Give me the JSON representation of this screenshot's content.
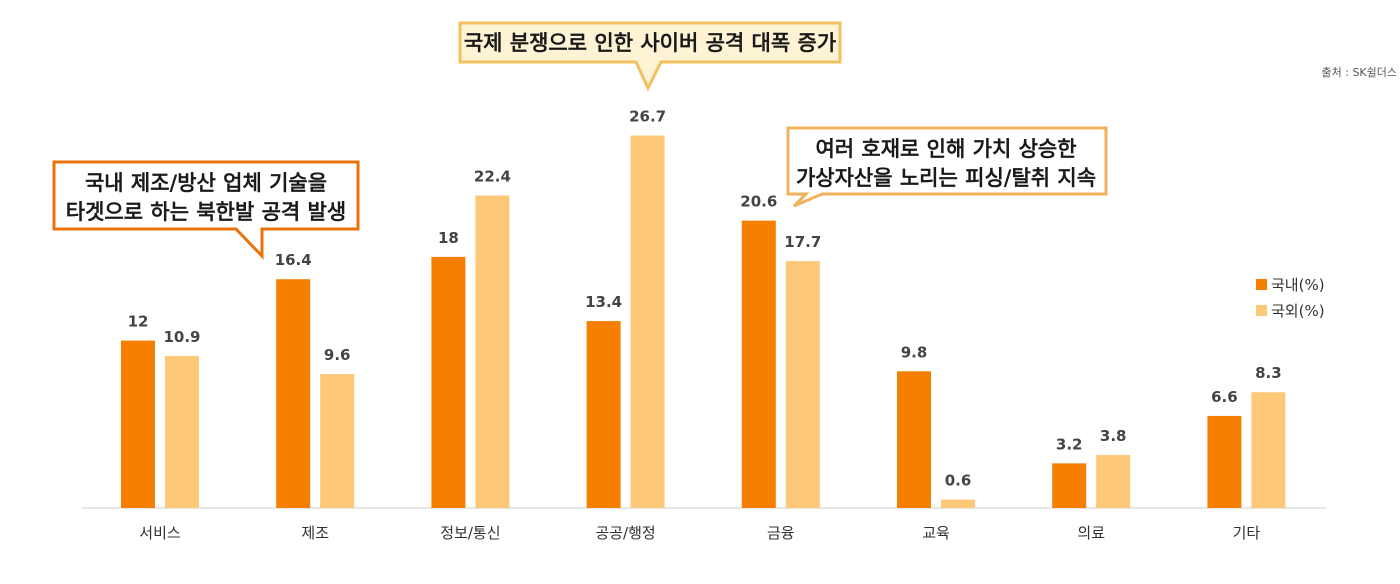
{
  "chart_data": {
    "type": "bar",
    "categories": [
      "서비스",
      "제조",
      "정보/통신",
      "공공/행정",
      "금융",
      "교육",
      "의료",
      "기타"
    ],
    "series": [
      {
        "name": "국내(%)",
        "color": "#F77F00",
        "values": [
          12,
          16.4,
          18,
          13.4,
          20.6,
          9.8,
          3.2,
          6.6
        ]
      },
      {
        "name": "국외(%)",
        "color": "#FDC877",
        "values": [
          10.9,
          9.6,
          22.4,
          26.7,
          17.7,
          0.6,
          3.8,
          8.3
        ]
      }
    ],
    "source": "출처 : SK쉴더스",
    "legend_position": "right",
    "grid": false,
    "ylim": [
      0,
      30
    ],
    "annotations": [
      {
        "lines": [
          "국내 제조/방산 업체 기술을",
          "타겟으로 하는 북한발 공격 발생"
        ],
        "category": "제조",
        "style": "outline",
        "border_color": "#E8730C"
      },
      {
        "lines": [
          "국제 분쟁으로 인한 사이버 공격 대폭 증가"
        ],
        "category": "공공/행정",
        "style": "filled",
        "border_color": "#F2C060",
        "fill_color": "#FFF3D6"
      },
      {
        "lines": [
          "여러 호재로 인해 가치 상승한",
          "가상자산을 노리는 피싱/탈취 지속"
        ],
        "category": "금융",
        "style": "outline",
        "border_color": "#F2B25C"
      }
    ]
  }
}
